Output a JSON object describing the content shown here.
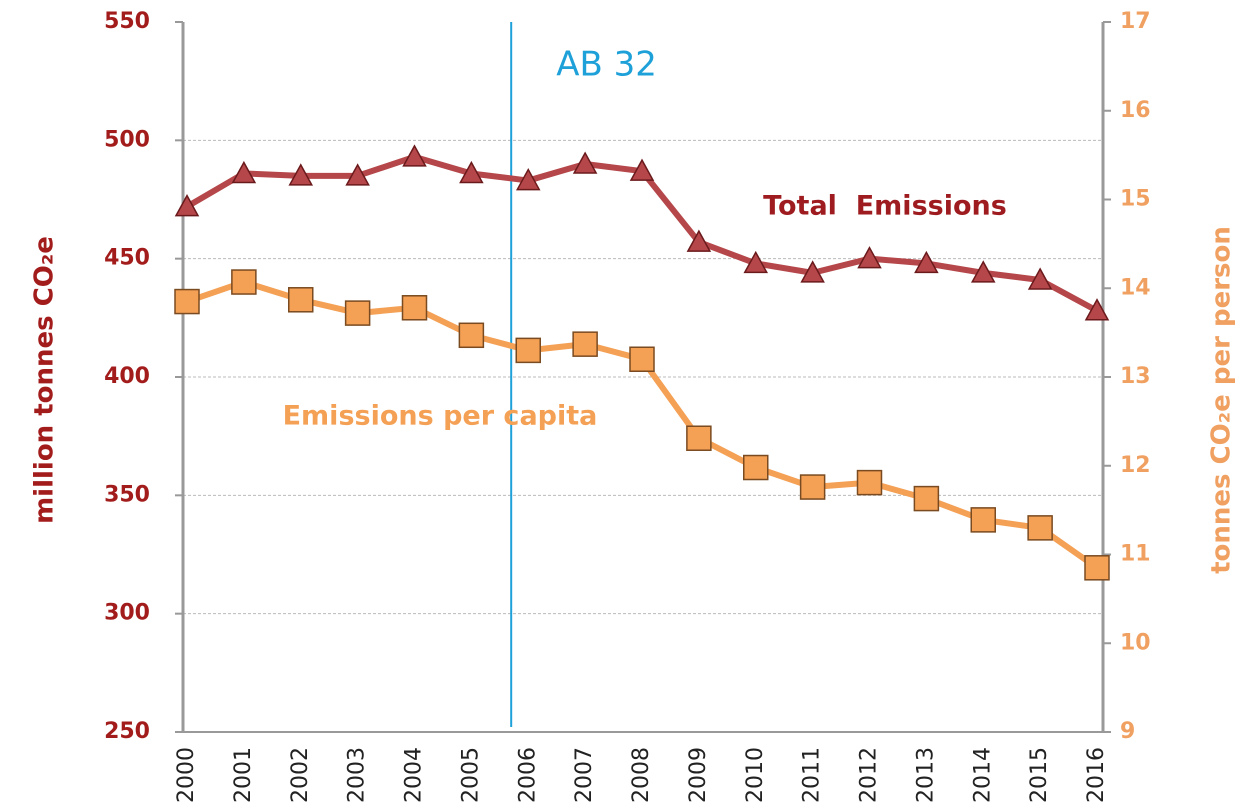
{
  "chart_data": {
    "type": "line",
    "categories": [
      "2000",
      "2001",
      "2002",
      "2003",
      "2004",
      "2005",
      "2006",
      "2007",
      "2008",
      "2009",
      "2010",
      "2011",
      "2012",
      "2013",
      "2014",
      "2015",
      "2016"
    ],
    "series": [
      {
        "name": "Total  Emissions",
        "color": "#b5474a",
        "marker": "triangle",
        "values": [
          472,
          486,
          485,
          485,
          493,
          486,
          483,
          490,
          487,
          457,
          448,
          444,
          450,
          448,
          444,
          441,
          428
        ]
      },
      {
        "name": "Emissions per capita",
        "color": "#f4a055",
        "marker": "square",
        "axis": "y2",
        "values": [
          13.85,
          14.07,
          13.87,
          13.72,
          13.78,
          13.47,
          13.3,
          13.37,
          13.2,
          12.31,
          11.98,
          11.76,
          11.81,
          11.63,
          11.39,
          11.3,
          10.85
        ]
      }
    ],
    "ylabel": "million tonnes CO₂e",
    "y2label": "tonnes CO₂e per person",
    "ylim": [
      250,
      550
    ],
    "yticks": [
      250,
      300,
      350,
      400,
      450,
      500,
      550
    ],
    "y2lim": [
      9,
      17
    ],
    "y2ticks": [
      9,
      10,
      11,
      12,
      13,
      14,
      15,
      16,
      17
    ],
    "grid": true,
    "annotation": {
      "text": "AB 32",
      "color": "#1ea0d8"
    }
  }
}
